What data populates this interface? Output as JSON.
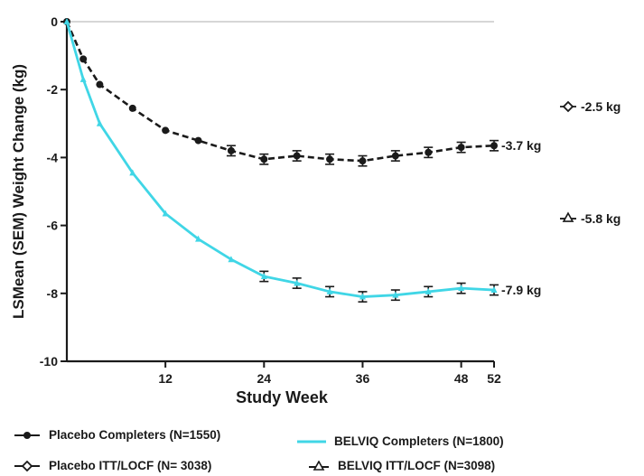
{
  "chart_data": {
    "type": "line",
    "xlabel": "Study Week",
    "ylabel": "LSMean (SEM) Weight Change (kg)",
    "xlim": [
      0,
      52
    ],
    "ylim": [
      -10,
      0
    ],
    "x_ticks": [
      12,
      24,
      36,
      48,
      52
    ],
    "y_ticks": [
      0,
      -2,
      -4,
      -6,
      -8,
      -10
    ],
    "reference_line_y": 0,
    "series": [
      {
        "name": "Placebo Completers (N=1550)",
        "color": "#1a1a1a",
        "style": "dashed",
        "marker": "circle",
        "x": [
          0,
          2,
          4,
          8,
          12,
          16,
          20,
          24,
          28,
          32,
          36,
          40,
          44,
          48,
          52
        ],
        "y": [
          0,
          -1.1,
          -1.85,
          -2.55,
          -3.2,
          -3.5,
          -3.8,
          -4.05,
          -3.95,
          -4.05,
          -4.1,
          -3.95,
          -3.85,
          -3.7,
          -3.65
        ],
        "error_from_x": 20,
        "sem": 0.15,
        "end_label": "-3.7 kg"
      },
      {
        "name": "BELVIQ Completers (N=1800)",
        "color": "#40d6e6",
        "style": "solid",
        "marker": "triangle",
        "x": [
          0,
          2,
          4,
          8,
          12,
          16,
          20,
          24,
          28,
          32,
          36,
          40,
          44,
          48,
          52
        ],
        "y": [
          0,
          -1.7,
          -3.0,
          -4.45,
          -5.65,
          -6.4,
          -7.0,
          -7.5,
          -7.7,
          -7.95,
          -8.1,
          -8.05,
          -7.95,
          -7.85,
          -7.9
        ],
        "error_from_x": 24,
        "sem": 0.15,
        "end_label": "-7.9 kg"
      }
    ],
    "itt_points": [
      {
        "name": "Placebo ITT/LOCF (N= 3038)",
        "marker": "diamond",
        "y": -2.5,
        "label": "-2.5 kg"
      },
      {
        "name": "BELVIQ ITT/LOCF (N=3098)",
        "marker": "triangle-open",
        "y": -5.8,
        "label": "-5.8 kg"
      }
    ]
  },
  "legend": [
    {
      "label": "Placebo Completers (N=1550)",
      "symbol": "line-dot"
    },
    {
      "label": "BELVIQ Completers (N=1800)",
      "symbol": "line-cyan"
    },
    {
      "label": "Placebo ITT/LOCF (N= 3038)",
      "symbol": "diamond"
    },
    {
      "label": "BELVIQ ITT/LOCF (N=3098)",
      "symbol": "triangle-open"
    }
  ]
}
